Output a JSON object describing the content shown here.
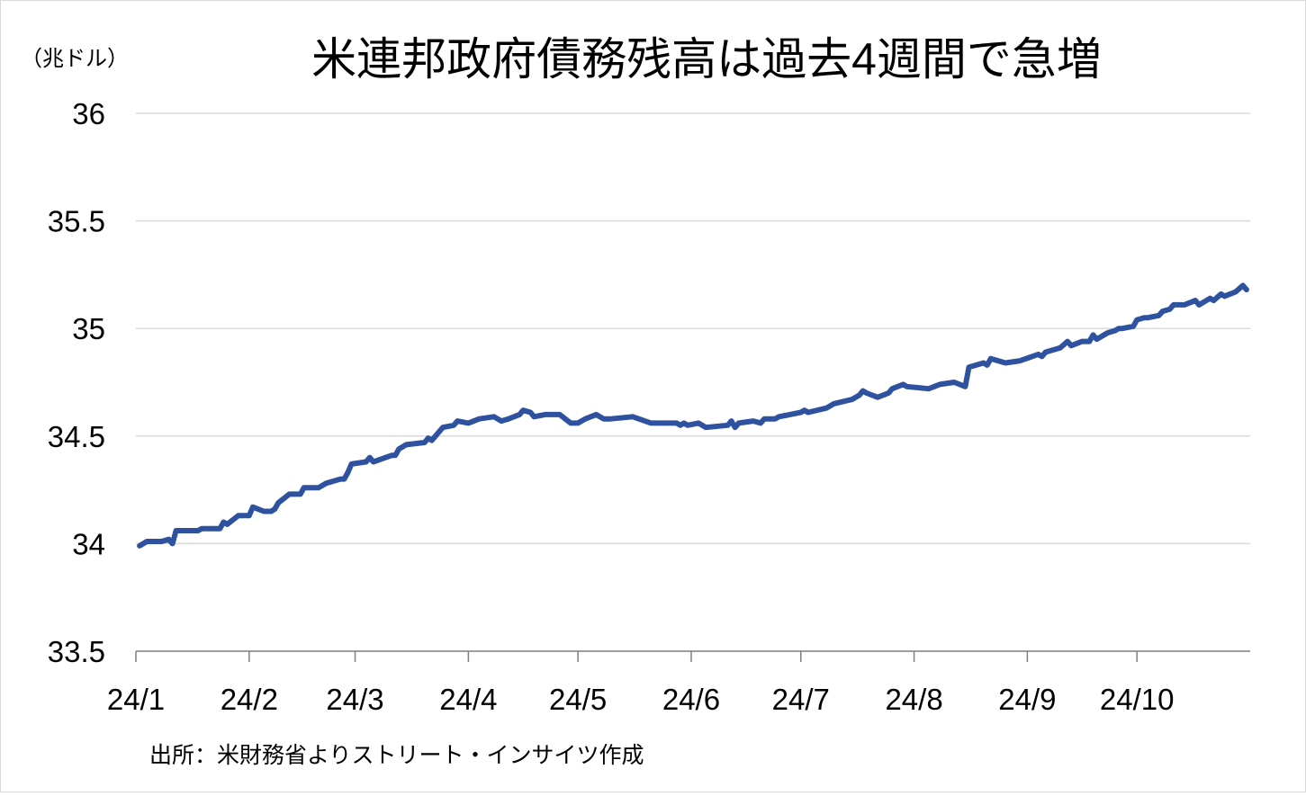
{
  "chart_data": {
    "type": "line",
    "title": "米連邦政府債務残高は過去4週間で急増",
    "unit_label": "（兆ドル）",
    "source": "出所：米財務省よりストリート・インサイツ作成",
    "ylim": [
      33.5,
      36
    ],
    "y_ticks": [
      "33.5",
      "34",
      "34.5",
      "35",
      "35.5",
      "36"
    ],
    "y_tick_values": [
      33.5,
      34,
      34.5,
      35,
      35.5,
      36
    ],
    "x_ticks": [
      "24/1",
      "24/2",
      "24/3",
      "24/4",
      "24/5",
      "24/6",
      "24/7",
      "24/8",
      "24/9",
      "24/10"
    ],
    "grid": true,
    "line_color": "#2f52a0",
    "series": [
      {
        "name": "",
        "points": [
          [
            "2024-01-02",
            33.99
          ],
          [
            "2024-01-04",
            34.01
          ],
          [
            "2024-01-08",
            34.01
          ],
          [
            "2024-01-10",
            34.02
          ],
          [
            "2024-01-11",
            34.0
          ],
          [
            "2024-01-12",
            34.06
          ],
          [
            "2024-01-17",
            34.06
          ],
          [
            "2024-01-18",
            34.06
          ],
          [
            "2024-01-19",
            34.07
          ],
          [
            "2024-01-24",
            34.07
          ],
          [
            "2024-01-25",
            34.1
          ],
          [
            "2024-01-26",
            34.09
          ],
          [
            "2024-01-29",
            34.13
          ],
          [
            "2024-02-01",
            34.13
          ],
          [
            "2024-02-02",
            34.17
          ],
          [
            "2024-02-05",
            34.15
          ],
          [
            "2024-02-07",
            34.15
          ],
          [
            "2024-02-08",
            34.16
          ],
          [
            "2024-02-09",
            34.19
          ],
          [
            "2024-02-12",
            34.23
          ],
          [
            "2024-02-15",
            34.23
          ],
          [
            "2024-02-16",
            34.26
          ],
          [
            "2024-02-20",
            34.26
          ],
          [
            "2024-02-22",
            34.28
          ],
          [
            "2024-02-26",
            34.3
          ],
          [
            "2024-02-27",
            34.3
          ],
          [
            "2024-02-28",
            34.33
          ],
          [
            "2024-02-29",
            34.37
          ],
          [
            "2024-03-04",
            34.38
          ],
          [
            "2024-03-05",
            34.4
          ],
          [
            "2024-03-06",
            34.38
          ],
          [
            "2024-03-11",
            34.41
          ],
          [
            "2024-03-12",
            34.41
          ],
          [
            "2024-03-13",
            34.44
          ],
          [
            "2024-03-15",
            34.46
          ],
          [
            "2024-03-20",
            34.47
          ],
          [
            "2024-03-21",
            34.49
          ],
          [
            "2024-03-22",
            34.48
          ],
          [
            "2024-03-25",
            34.54
          ],
          [
            "2024-03-28",
            34.55
          ],
          [
            "2024-03-29",
            34.57
          ],
          [
            "2024-04-01",
            34.56
          ],
          [
            "2024-04-04",
            34.58
          ],
          [
            "2024-04-08",
            34.59
          ],
          [
            "2024-04-10",
            34.57
          ],
          [
            "2024-04-12",
            34.58
          ],
          [
            "2024-04-15",
            34.6
          ],
          [
            "2024-04-16",
            34.62
          ],
          [
            "2024-04-18",
            34.61
          ],
          [
            "2024-04-19",
            34.59
          ],
          [
            "2024-04-22",
            34.6
          ],
          [
            "2024-04-26",
            34.6
          ],
          [
            "2024-04-29",
            34.56
          ],
          [
            "2024-05-01",
            34.56
          ],
          [
            "2024-05-03",
            34.58
          ],
          [
            "2024-05-06",
            34.6
          ],
          [
            "2024-05-08",
            34.58
          ],
          [
            "2024-05-10",
            34.58
          ],
          [
            "2024-05-16",
            34.59
          ],
          [
            "2024-05-21",
            34.56
          ],
          [
            "2024-05-24",
            34.56
          ],
          [
            "2024-05-28",
            34.56
          ],
          [
            "2024-05-29",
            34.55
          ],
          [
            "2024-05-30",
            34.56
          ],
          [
            "2024-05-31",
            34.55
          ],
          [
            "2024-06-03",
            34.56
          ],
          [
            "2024-06-04",
            34.55
          ],
          [
            "2024-06-05",
            34.54
          ],
          [
            "2024-06-11",
            34.55
          ],
          [
            "2024-06-12",
            34.57
          ],
          [
            "2024-06-13",
            34.54
          ],
          [
            "2024-06-14",
            34.56
          ],
          [
            "2024-06-18",
            34.57
          ],
          [
            "2024-06-20",
            34.56
          ],
          [
            "2024-06-21",
            34.58
          ],
          [
            "2024-06-24",
            34.58
          ],
          [
            "2024-06-25",
            34.59
          ],
          [
            "2024-06-28",
            34.6
          ],
          [
            "2024-07-01",
            34.61
          ],
          [
            "2024-07-02",
            34.62
          ],
          [
            "2024-07-03",
            34.61
          ],
          [
            "2024-07-08",
            34.63
          ],
          [
            "2024-07-10",
            34.65
          ],
          [
            "2024-07-15",
            34.67
          ],
          [
            "2024-07-17",
            34.69
          ],
          [
            "2024-07-18",
            34.71
          ],
          [
            "2024-07-19",
            34.7
          ],
          [
            "2024-07-22",
            34.68
          ],
          [
            "2024-07-25",
            34.7
          ],
          [
            "2024-07-26",
            34.72
          ],
          [
            "2024-07-29",
            34.74
          ],
          [
            "2024-07-30",
            34.73
          ],
          [
            "2024-08-05",
            34.72
          ],
          [
            "2024-08-08",
            34.74
          ],
          [
            "2024-08-12",
            34.75
          ],
          [
            "2024-08-15",
            34.73
          ],
          [
            "2024-08-16",
            34.82
          ],
          [
            "2024-08-20",
            34.84
          ],
          [
            "2024-08-21",
            34.83
          ],
          [
            "2024-08-22",
            34.86
          ],
          [
            "2024-08-26",
            34.84
          ],
          [
            "2024-08-30",
            34.85
          ],
          [
            "2024-09-04",
            34.88
          ],
          [
            "2024-09-05",
            34.87
          ],
          [
            "2024-09-06",
            34.89
          ],
          [
            "2024-09-10",
            34.91
          ],
          [
            "2024-09-12",
            34.94
          ],
          [
            "2024-09-13",
            34.92
          ],
          [
            "2024-09-16",
            34.94
          ],
          [
            "2024-09-18",
            34.94
          ],
          [
            "2024-09-19",
            34.97
          ],
          [
            "2024-09-20",
            34.95
          ],
          [
            "2024-09-23",
            34.98
          ],
          [
            "2024-09-25",
            34.99
          ],
          [
            "2024-09-26",
            35.0
          ],
          [
            "2024-09-27",
            35.0
          ],
          [
            "2024-09-30",
            35.01
          ],
          [
            "2024-10-01",
            35.04
          ],
          [
            "2024-10-03",
            35.05
          ],
          [
            "2024-10-04",
            35.05
          ],
          [
            "2024-10-07",
            35.06
          ],
          [
            "2024-10-08",
            35.08
          ],
          [
            "2024-10-10",
            35.09
          ],
          [
            "2024-10-11",
            35.11
          ],
          [
            "2024-10-14",
            35.11
          ],
          [
            "2024-10-17",
            35.13
          ],
          [
            "2024-10-18",
            35.11
          ],
          [
            "2024-10-21",
            35.14
          ],
          [
            "2024-10-22",
            35.13
          ],
          [
            "2024-10-24",
            35.16
          ],
          [
            "2024-10-25",
            35.15
          ],
          [
            "2024-10-28",
            35.17
          ],
          [
            "2024-10-30",
            35.2
          ],
          [
            "2024-10-31",
            35.18
          ]
        ]
      }
    ]
  }
}
